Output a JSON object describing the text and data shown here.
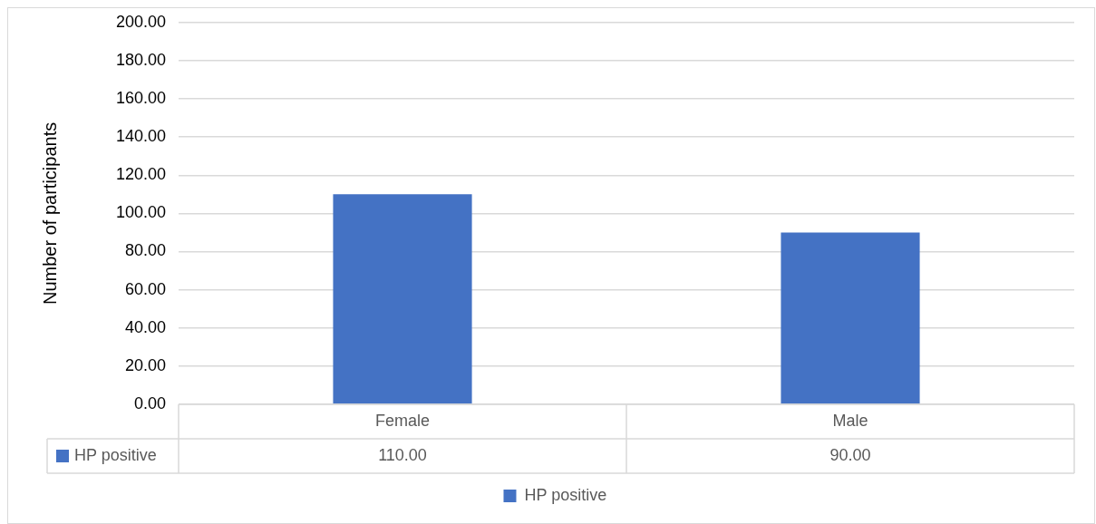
{
  "chart_data": {
    "type": "bar",
    "ylabel": "Number of participants",
    "categories": [
      "Female",
      "Male"
    ],
    "series": [
      {
        "name": "HP positive",
        "color": "#4472c4",
        "values": [
          110,
          90
        ],
        "value_labels": [
          "110.00",
          "90.00"
        ]
      }
    ],
    "ylim": [
      0,
      200
    ],
    "yticks": [
      {
        "value": 0,
        "label": "0.00"
      },
      {
        "value": 20,
        "label": "20.00"
      },
      {
        "value": 40,
        "label": "40.00"
      },
      {
        "value": 60,
        "label": "60.00"
      },
      {
        "value": 80,
        "label": "80.00"
      },
      {
        "value": 100,
        "label": "100.00"
      },
      {
        "value": 120,
        "label": "120.00"
      },
      {
        "value": 140,
        "label": "140.00"
      },
      {
        "value": 160,
        "label": "160.00"
      },
      {
        "value": 180,
        "label": "180.00"
      },
      {
        "value": 200,
        "label": "200.00"
      }
    ],
    "grid": "y",
    "legend": "bottom"
  }
}
